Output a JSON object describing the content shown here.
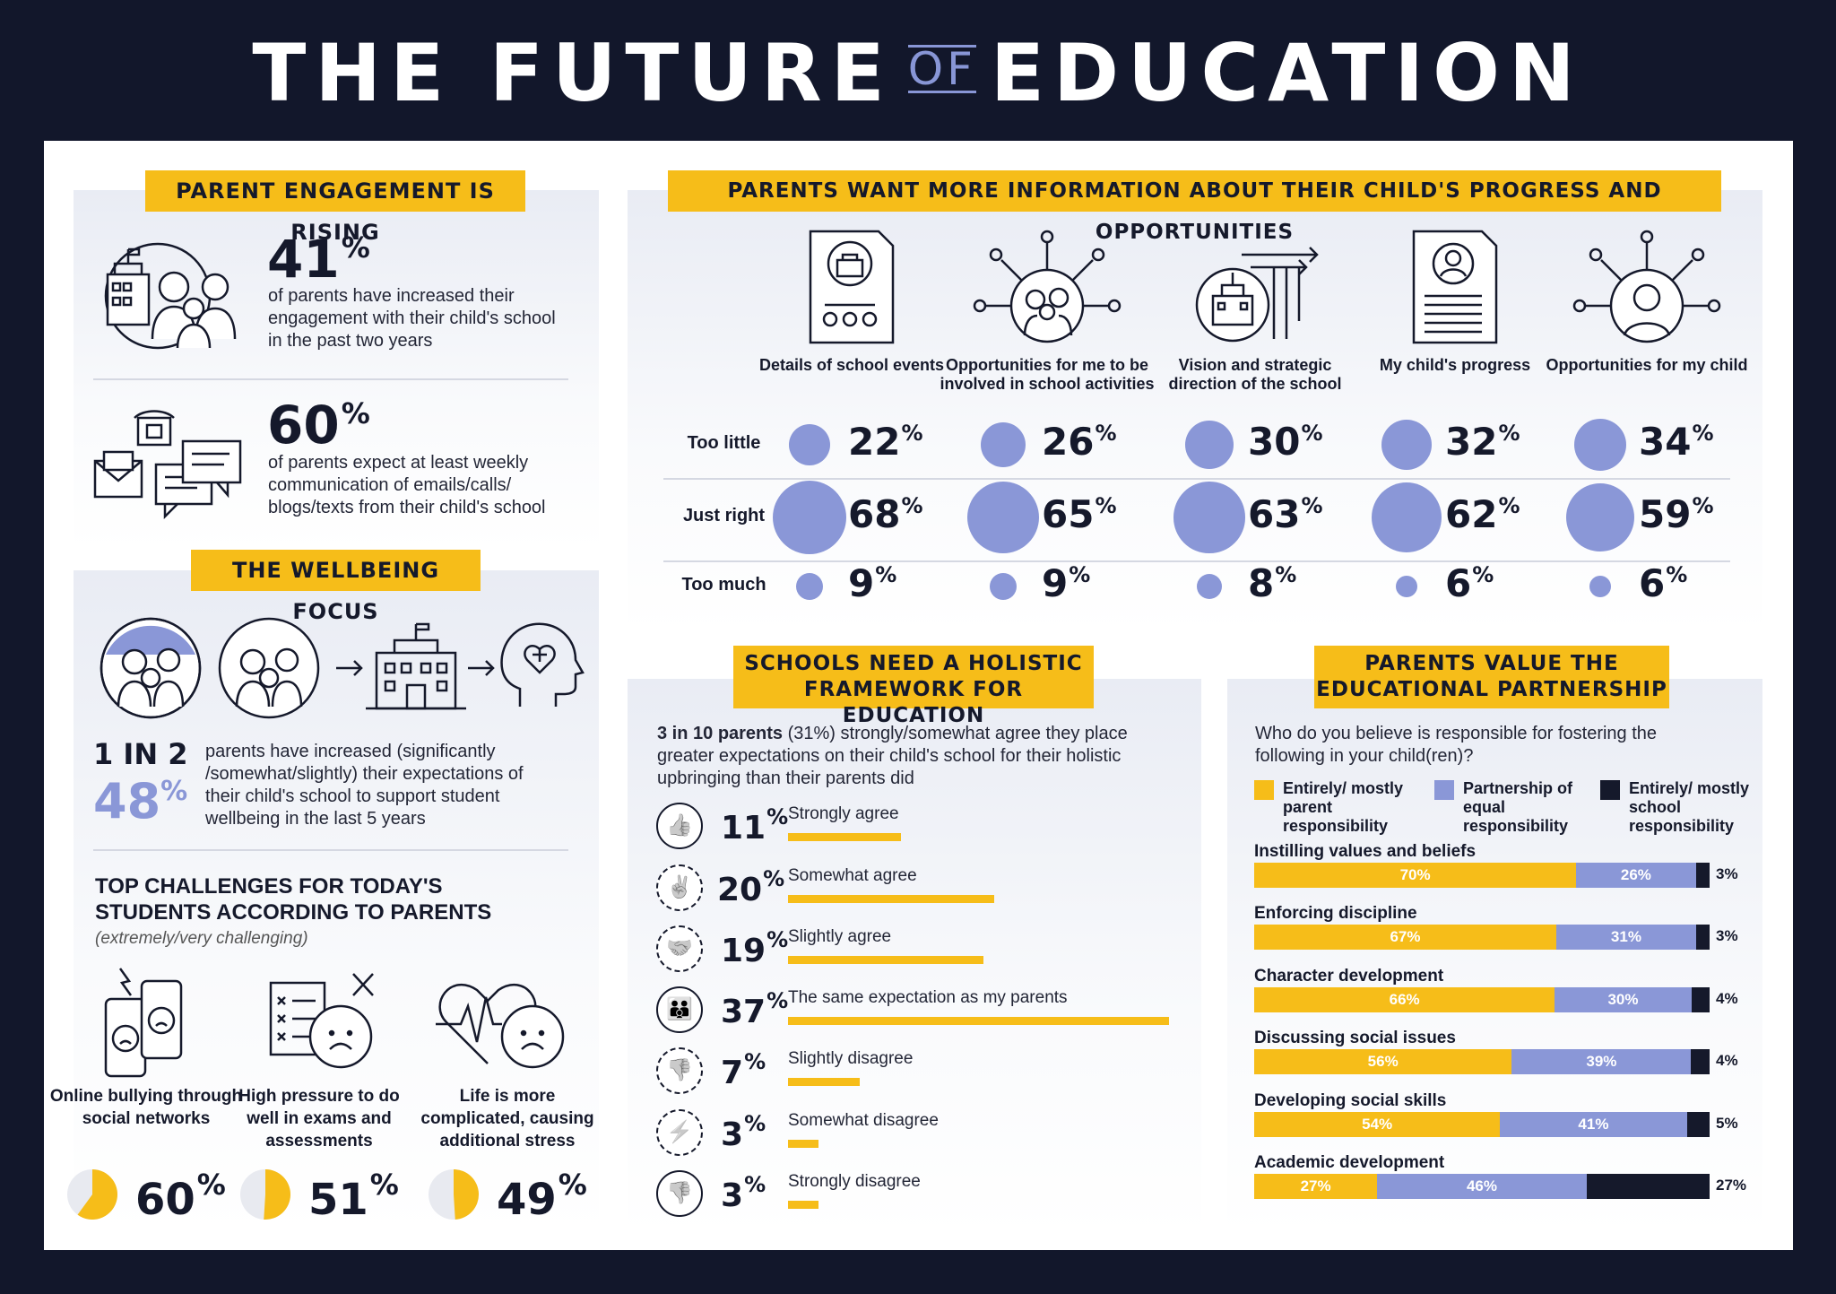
{
  "title": {
    "part1": "THE FUTURE",
    "of": "OF",
    "part2": "EDUCATION"
  },
  "engagement": {
    "heading": "PARENT ENGAGEMENT IS RISING",
    "stat1": {
      "value": "41",
      "unit": "%",
      "text": "of parents have increased their engagement with their child's school in the past two years"
    },
    "stat2": {
      "value": "60",
      "unit": "%",
      "text": "of parents expect at least weekly communication of emails/calls/ blogs/texts from their child's school"
    }
  },
  "wellbeing": {
    "heading": "THE WELLBEING FOCUS",
    "ratio": "1 IN 2",
    "value": "48",
    "unit": "%",
    "text": "parents have increased (significantly /somewhat/slightly) their expectations of their child's school to support student wellbeing in the last 5 years",
    "challenges_heading": "TOP CHALLENGES FOR TODAY'S STUDENTS ACCORDING TO PARENTS",
    "challenges_note": "(extremely/very challenging)",
    "challenges": [
      {
        "label": "Online bullying through social networks",
        "value": 60
      },
      {
        "label": "High pressure to do well in exams and assessments",
        "value": 51
      },
      {
        "label": "Life is more complicated, causing additional stress",
        "value": 49
      }
    ]
  },
  "information": {
    "heading": "PARENTS WANT MORE INFORMATION ABOUT  THEIR CHILD'S PROGRESS AND OPPORTUNITIES",
    "rows": [
      "Too little",
      "Just right",
      "Too much"
    ],
    "columns": [
      {
        "label": "Details of school events",
        "icon": "school-events-icon",
        "values": [
          22,
          68,
          9
        ]
      },
      {
        "label": "Opportunities for me to be involved in school activities",
        "icon": "parent-involvement-icon",
        "values": [
          26,
          65,
          9
        ]
      },
      {
        "label": "Vision and strategic direction of the school",
        "icon": "school-direction-icon",
        "values": [
          30,
          63,
          8
        ]
      },
      {
        "label": "My child's progress",
        "icon": "progress-report-icon",
        "values": [
          32,
          62,
          6
        ]
      },
      {
        "label": "Opportunities for my child",
        "icon": "child-opportunities-icon",
        "values": [
          34,
          59,
          6
        ]
      }
    ]
  },
  "holistic": {
    "heading_line1": "SCHOOLS NEED A HOLISTIC",
    "heading_line2": "FRAMEWORK FOR EDUCATION",
    "intro_bold": "3 in 10 parents",
    "intro_rest": " (31%) strongly/somewhat agree they place greater expectations on their child's school for their holistic upbringing than their parents did"
  },
  "partnership": {
    "heading_line1": "PARENTS VALUE THE",
    "heading_line2": "EDUCATIONAL PARTNERSHIP",
    "question": "Who do you believe is responsible for fostering the following in your child(ren)?"
  },
  "chart_data": [
    {
      "type": "bar",
      "title": "SCHOOLS NEED A HOLISTIC FRAMEWORK FOR EDUCATION",
      "categories": [
        "Strongly agree",
        "Somewhat agree",
        "Slightly agree",
        "The same expectation as my parents",
        "Slightly disagree",
        "Somewhat disagree",
        "Strongly disagree"
      ],
      "values": [
        11,
        20,
        19,
        37,
        7,
        3,
        3
      ],
      "unit": "%",
      "icons": [
        "thumbs-up-icon",
        "half-thumbs-up-icon",
        "handshake-icon",
        "family-icon",
        "half-thumbs-down-icon",
        "broken-handshake-icon",
        "thumbs-down-icon"
      ],
      "color": "#f6bd19"
    },
    {
      "type": "bar",
      "stacked": true,
      "orientation": "horizontal",
      "title": "PARENTS VALUE THE EDUCATIONAL PARTNERSHIP",
      "categories": [
        "Instilling values and beliefs",
        "Enforcing discipline",
        "Character development",
        "Discussing social issues",
        "Developing social skills",
        "Academic development"
      ],
      "series": [
        {
          "name": "Entirely/ mostly parent responsibility",
          "color": "#f6bd19",
          "values": [
            70,
            67,
            66,
            56,
            54,
            27
          ]
        },
        {
          "name": "Partnership of equal responsibility",
          "color": "#8a97d7",
          "values": [
            26,
            31,
            30,
            39,
            41,
            46
          ]
        },
        {
          "name": "Entirely/ mostly school responsibility",
          "color": "#15192b",
          "values": [
            3,
            3,
            4,
            4,
            5,
            27
          ]
        }
      ],
      "unit": "%"
    }
  ]
}
